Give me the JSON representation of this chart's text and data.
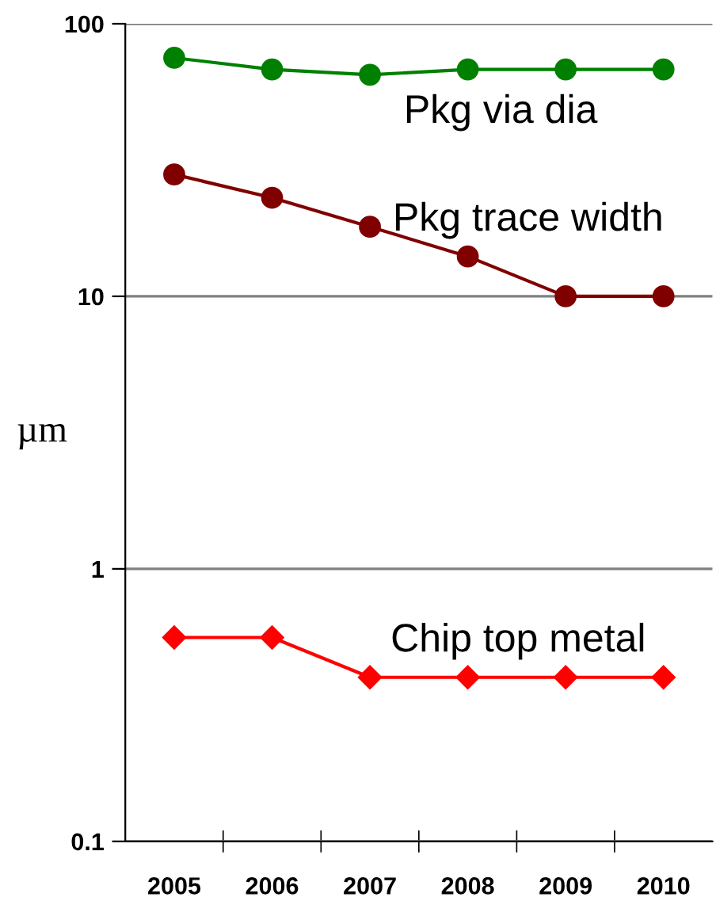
{
  "chart_data": {
    "type": "line",
    "ylabel": "µm",
    "categories": [
      "2005",
      "2006",
      "2007",
      "2008",
      "2009",
      "2010"
    ],
    "series": [
      {
        "name": "Pkg via dia",
        "color": "#008000",
        "marker": "circle",
        "values": [
          75,
          68,
          65,
          68,
          68,
          68
        ]
      },
      {
        "name": "Pkg trace width",
        "color": "#800000",
        "marker": "circle",
        "values": [
          28,
          23,
          18,
          14,
          10,
          10
        ]
      },
      {
        "name": "Chip top metal",
        "color": "#ff0000",
        "marker": "diamond",
        "values": [
          0.56,
          0.56,
          0.4,
          0.4,
          0.4,
          0.4
        ]
      }
    ],
    "log": "y",
    "ylim": [
      0.1,
      100
    ],
    "yticks": [
      0.1,
      1,
      10,
      100
    ],
    "grid": "y",
    "legend": false,
    "line_style": "solid"
  }
}
